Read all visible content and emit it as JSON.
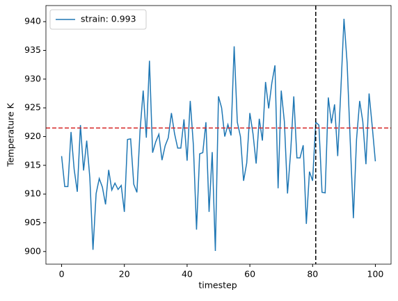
{
  "chart_data": {
    "type": "line",
    "xlabel": "timestep",
    "ylabel": "Temperature K",
    "x": [
      0,
      1,
      2,
      3,
      4,
      5,
      6,
      7,
      8,
      9,
      10,
      11,
      12,
      13,
      14,
      15,
      16,
      17,
      18,
      19,
      20,
      21,
      22,
      23,
      24,
      25,
      26,
      27,
      28,
      29,
      30,
      31,
      32,
      33,
      34,
      35,
      36,
      37,
      38,
      39,
      40,
      41,
      42,
      43,
      44,
      45,
      46,
      47,
      48,
      49,
      50,
      51,
      52,
      53,
      54,
      55,
      56,
      57,
      58,
      59,
      60,
      61,
      62,
      63,
      64,
      65,
      66,
      67,
      68,
      69,
      70,
      71,
      72,
      73,
      74,
      75,
      76,
      77,
      78,
      79,
      80,
      81,
      82,
      83,
      84,
      85,
      86,
      87,
      88,
      89,
      90,
      91,
      92,
      93,
      94,
      95,
      96,
      97,
      98,
      99,
      100
    ],
    "series": [
      {
        "name": "strain: 0.993",
        "color": "#1f77b4",
        "values": [
          916.6,
          911.3,
          911.3,
          920.8,
          914.3,
          910.4,
          922,
          914.1,
          919.3,
          912.8,
          900.3,
          910.1,
          912.7,
          911.2,
          908.2,
          914.2,
          910.7,
          911.9,
          910.8,
          911.5,
          906.9,
          919.5,
          919.6,
          911.7,
          910.3,
          921,
          928,
          919.8,
          933.2,
          917.2,
          919.1,
          920.4,
          915.9,
          918.4,
          919.8,
          924.1,
          920.5,
          918,
          918,
          923,
          915.8,
          926.2,
          918.5,
          903.8,
          917,
          917.2,
          922.5,
          906.9,
          917.3,
          900.1,
          927,
          925,
          920,
          922.1,
          920.2,
          935.7,
          922.5,
          920,
          912.3,
          915.4,
          924.1,
          920.5,
          915.3,
          923.1,
          919.3,
          929.5,
          924.9,
          929.3,
          932.4,
          911,
          928,
          922.6,
          910.1,
          917.3,
          927,
          916.3,
          916.3,
          918.5,
          904.8,
          913.9,
          912.3,
          922.5,
          922,
          910.3,
          910.2,
          926.8,
          922.3,
          925.6,
          916.6,
          928.1,
          940.5,
          932.8,
          919.1,
          905.8,
          919.5,
          926.2,
          922.6,
          915.2,
          927.5,
          921.8,
          915.7
        ]
      }
    ],
    "hline": {
      "value": 921.5,
      "color": "#d62728"
    },
    "vline": {
      "value": 81,
      "color": "#000000"
    },
    "xlim": [
      -5,
      105
    ],
    "ylim": [
      897.8,
      942.8
    ],
    "xticks": [
      0,
      20,
      40,
      60,
      80,
      100
    ],
    "yticks": [
      900,
      905,
      910,
      915,
      920,
      925,
      930,
      935,
      940
    ],
    "legend": "upper left"
  }
}
